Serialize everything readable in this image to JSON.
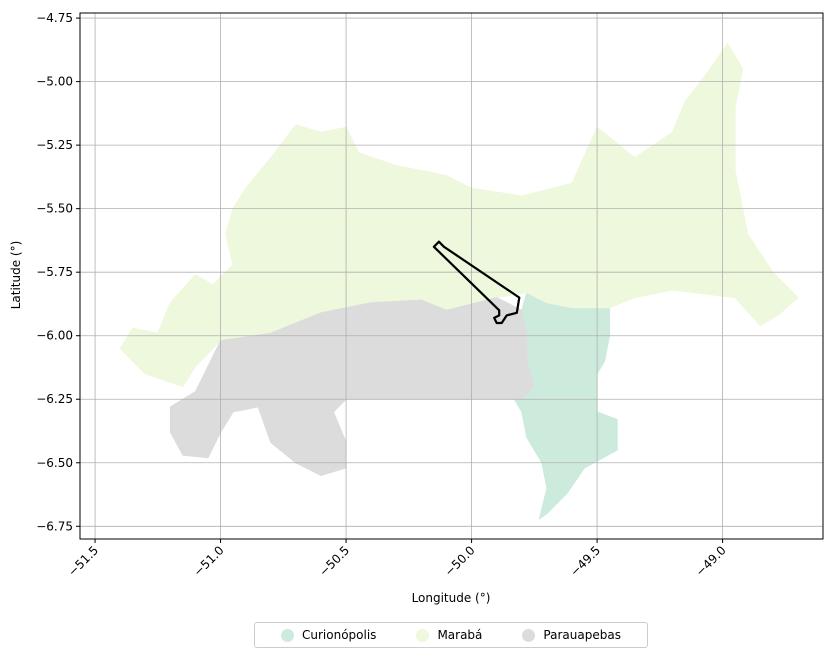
{
  "chart_data": {
    "type": "map",
    "xlabel": "Longitude (°)",
    "ylabel": "Latitude (°)",
    "xlim": [
      -51.56,
      -48.6
    ],
    "ylim": [
      -6.8,
      -4.73
    ],
    "x_ticks": [
      -51.5,
      -51.0,
      -50.5,
      -50.0,
      -49.5,
      -49.0
    ],
    "x_tick_labels": [
      "−51.5",
      "−51.0",
      "−50.5",
      "−50.0",
      "−49.5",
      "−49.0"
    ],
    "y_ticks": [
      -4.75,
      -5.0,
      -5.25,
      -5.5,
      -5.75,
      -6.0,
      -6.25,
      -6.5,
      -6.75
    ],
    "y_tick_labels": [
      "−4.75",
      "−5.00",
      "−5.25",
      "−5.50",
      "−5.75",
      "−6.00",
      "−6.25",
      "−6.50",
      "−6.75"
    ],
    "grid": true,
    "legend_position": "bottom-center",
    "regions": [
      {
        "name": "Curionópolis",
        "color": "#cdebdc",
        "polygon": [
          [
            -49.78,
            -5.83
          ],
          [
            -49.7,
            -5.87
          ],
          [
            -49.6,
            -5.89
          ],
          [
            -49.45,
            -5.89
          ],
          [
            -49.45,
            -6.0
          ],
          [
            -49.47,
            -6.1
          ],
          [
            -49.5,
            -6.15
          ],
          [
            -49.5,
            -6.3
          ],
          [
            -49.42,
            -6.33
          ],
          [
            -49.42,
            -6.45
          ],
          [
            -49.55,
            -6.52
          ],
          [
            -49.62,
            -6.62
          ],
          [
            -49.7,
            -6.7
          ],
          [
            -49.73,
            -6.72
          ],
          [
            -49.7,
            -6.6
          ],
          [
            -49.72,
            -6.5
          ],
          [
            -49.78,
            -6.4
          ],
          [
            -49.8,
            -6.3
          ],
          [
            -49.83,
            -6.25
          ],
          [
            -49.8,
            -6.2
          ],
          [
            -49.75,
            -6.2
          ],
          [
            -49.78,
            -6.1
          ],
          [
            -49.78,
            -6.0
          ],
          [
            -49.8,
            -5.9
          ]
        ]
      },
      {
        "name": "Marabá",
        "color": "#eef8dc",
        "polygon": [
          [
            -51.4,
            -6.05
          ],
          [
            -51.35,
            -5.97
          ],
          [
            -51.25,
            -5.99
          ],
          [
            -51.2,
            -5.87
          ],
          [
            -51.1,
            -5.76
          ],
          [
            -51.03,
            -5.8
          ],
          [
            -50.95,
            -5.72
          ],
          [
            -50.98,
            -5.6
          ],
          [
            -50.95,
            -5.5
          ],
          [
            -50.9,
            -5.42
          ],
          [
            -50.8,
            -5.3
          ],
          [
            -50.7,
            -5.17
          ],
          [
            -50.6,
            -5.2
          ],
          [
            -50.5,
            -5.18
          ],
          [
            -50.45,
            -5.28
          ],
          [
            -50.3,
            -5.33
          ],
          [
            -50.1,
            -5.37
          ],
          [
            -50.0,
            -5.42
          ],
          [
            -49.8,
            -5.45
          ],
          [
            -49.6,
            -5.4
          ],
          [
            -49.5,
            -5.18
          ],
          [
            -49.35,
            -5.3
          ],
          [
            -49.2,
            -5.2
          ],
          [
            -49.15,
            -5.08
          ],
          [
            -49.05,
            -4.95
          ],
          [
            -48.98,
            -4.85
          ],
          [
            -48.92,
            -4.95
          ],
          [
            -48.95,
            -5.1
          ],
          [
            -48.95,
            -5.35
          ],
          [
            -48.9,
            -5.6
          ],
          [
            -48.8,
            -5.75
          ],
          [
            -48.7,
            -5.85
          ],
          [
            -48.78,
            -5.92
          ],
          [
            -48.85,
            -5.96
          ],
          [
            -48.95,
            -5.85
          ],
          [
            -49.2,
            -5.82
          ],
          [
            -49.35,
            -5.85
          ],
          [
            -49.45,
            -5.89
          ],
          [
            -49.6,
            -5.89
          ],
          [
            -49.7,
            -5.87
          ],
          [
            -49.78,
            -5.83
          ],
          [
            -49.9,
            -5.85
          ],
          [
            -50.1,
            -5.9
          ],
          [
            -50.2,
            -5.86
          ],
          [
            -50.4,
            -5.87
          ],
          [
            -50.6,
            -5.91
          ],
          [
            -50.8,
            -5.99
          ],
          [
            -51.0,
            -6.02
          ],
          [
            -51.1,
            -6.12
          ],
          [
            -51.15,
            -6.2
          ],
          [
            -51.3,
            -6.15
          ]
        ]
      },
      {
        "name": "Parauapebas",
        "color": "#dcdcdc",
        "polygon": [
          [
            -51.0,
            -6.02
          ],
          [
            -50.8,
            -5.99
          ],
          [
            -50.6,
            -5.91
          ],
          [
            -50.4,
            -5.87
          ],
          [
            -50.2,
            -5.86
          ],
          [
            -50.1,
            -5.9
          ],
          [
            -49.9,
            -5.85
          ],
          [
            -49.8,
            -5.9
          ],
          [
            -49.78,
            -6.0
          ],
          [
            -49.78,
            -6.1
          ],
          [
            -49.75,
            -6.2
          ],
          [
            -49.8,
            -6.25
          ],
          [
            -50.5,
            -6.25
          ],
          [
            -50.55,
            -6.3
          ],
          [
            -50.5,
            -6.42
          ],
          [
            -50.5,
            -6.52
          ],
          [
            -50.6,
            -6.55
          ],
          [
            -50.7,
            -6.5
          ],
          [
            -50.8,
            -6.42
          ],
          [
            -50.85,
            -6.28
          ],
          [
            -50.95,
            -6.3
          ],
          [
            -51.0,
            -6.38
          ],
          [
            -51.05,
            -6.48
          ],
          [
            -51.15,
            -6.47
          ],
          [
            -51.2,
            -6.38
          ],
          [
            -51.2,
            -6.28
          ],
          [
            -51.1,
            -6.22
          ]
        ]
      }
    ],
    "outline": [
      [
        -50.15,
        -5.65
      ],
      [
        -50.13,
        -5.63
      ],
      [
        -50.11,
        -5.65
      ],
      [
        -49.81,
        -5.85
      ],
      [
        -49.82,
        -5.91
      ],
      [
        -49.86,
        -5.92
      ],
      [
        -49.88,
        -5.95
      ],
      [
        -49.9,
        -5.95
      ],
      [
        -49.91,
        -5.93
      ],
      [
        -49.89,
        -5.92
      ],
      [
        -49.89,
        -5.9
      ]
    ]
  },
  "legend": {
    "items": [
      {
        "label": "Curionópolis",
        "color": "#cdebdc"
      },
      {
        "label": "Marabá",
        "color": "#eef8dc"
      },
      {
        "label": "Parauapebas",
        "color": "#dcdcdc"
      }
    ]
  }
}
